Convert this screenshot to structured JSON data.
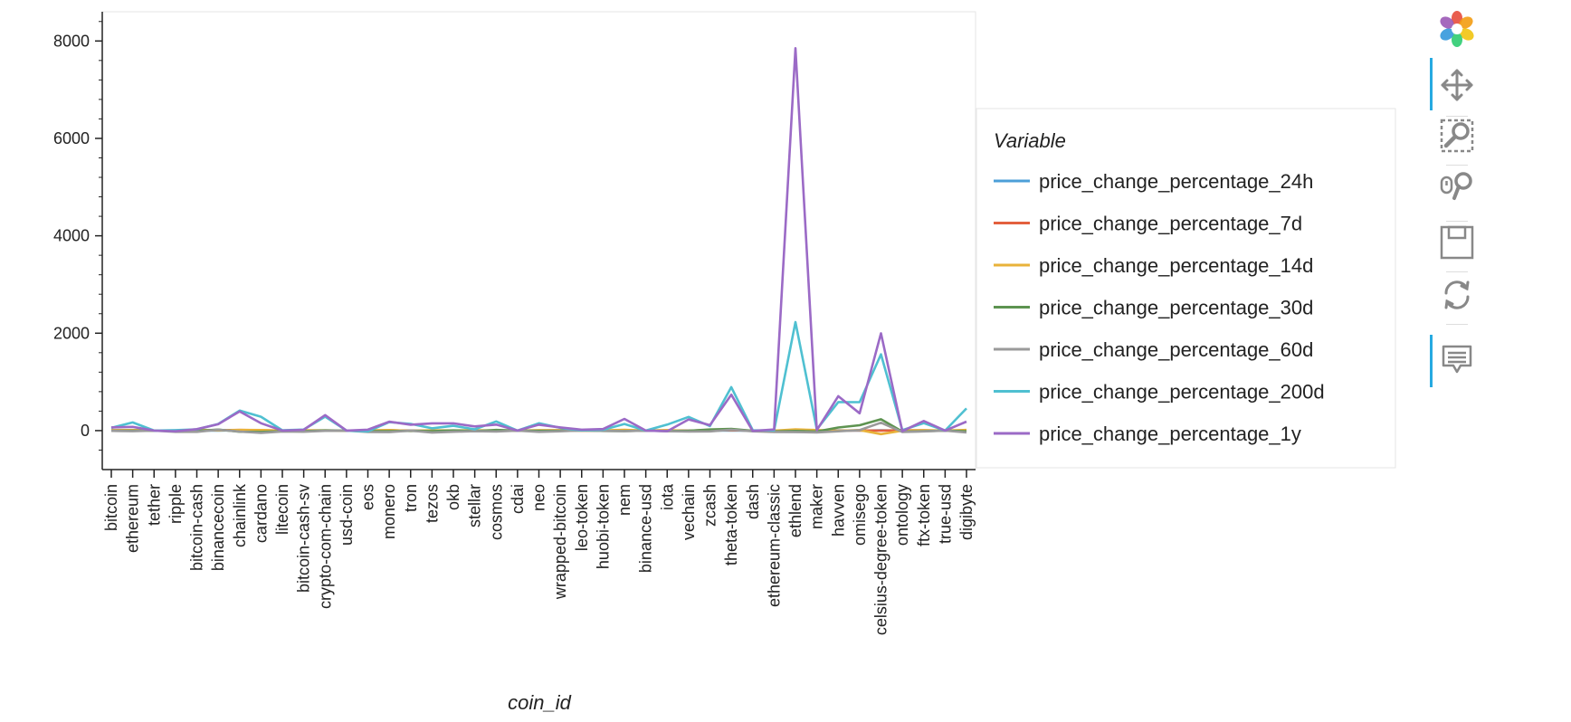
{
  "chart_data": {
    "type": "line",
    "xlabel": "coin_id",
    "ylabel": "",
    "ylim": [
      -800,
      8600
    ],
    "yticks": [
      0,
      2000,
      4000,
      6000,
      8000
    ],
    "legend_title": "Variable",
    "legend_position": "right",
    "grid": false,
    "categories": [
      "bitcoin",
      "ethereum",
      "tether",
      "ripple",
      "bitcoin-cash",
      "binancecoin",
      "chainlink",
      "cardano",
      "litecoin",
      "bitcoin-cash-sv",
      "crypto-com-chain",
      "usd-coin",
      "eos",
      "monero",
      "tron",
      "tezos",
      "okb",
      "stellar",
      "cosmos",
      "cdai",
      "neo",
      "wrapped-bitcoin",
      "leo-token",
      "huobi-token",
      "nem",
      "binance-usd",
      "iota",
      "vechain",
      "zcash",
      "theta-token",
      "dash",
      "ethereum-classic",
      "ethlend",
      "maker",
      "havven",
      "omisego",
      "celsius-degree-token",
      "ontology",
      "ftx-token",
      "true-usd",
      "digibyte"
    ],
    "series": [
      {
        "name": "price_change_percentage_24h",
        "color": "#4c9fd8",
        "values": [
          1,
          2,
          0,
          -1,
          2,
          -1,
          8,
          1,
          1,
          0,
          3,
          0,
          1,
          3,
          1,
          1,
          3,
          -1,
          -1,
          0,
          3,
          1,
          0,
          1,
          2,
          0,
          2,
          -1,
          2,
          -1,
          0,
          1,
          2,
          1,
          4,
          -1,
          6,
          0,
          -1,
          0,
          -1
        ]
      },
      {
        "name": "price_change_percentage_7d",
        "color": "#e3603e",
        "values": [
          7,
          10,
          0,
          -4,
          14,
          8,
          13,
          10,
          -1,
          4,
          2,
          0,
          2,
          8,
          -2,
          -4,
          3,
          4,
          -2,
          0,
          4,
          7,
          0,
          0,
          4,
          0,
          7,
          -3,
          16,
          7,
          -2,
          -2,
          -6,
          3,
          -1,
          2,
          1,
          6,
          7,
          0,
          5
        ]
      },
      {
        "name": "price_change_percentage_14d",
        "color": "#e8b23a",
        "values": [
          7,
          12,
          0,
          0,
          17,
          7,
          13,
          11,
          1,
          5,
          4,
          0,
          2,
          12,
          -6,
          7,
          2,
          8,
          3,
          0,
          6,
          7,
          0,
          4,
          15,
          0,
          10,
          -7,
          11,
          18,
          -1,
          -3,
          25,
          11,
          -4,
          12,
          -72,
          -1,
          9,
          0,
          13
        ]
      },
      {
        "name": "price_change_percentage_30d",
        "color": "#5d9350",
        "values": [
          -3,
          -2,
          0,
          -3,
          -7,
          22,
          -24,
          -27,
          -10,
          -13,
          5,
          0,
          -11,
          -11,
          -4,
          -10,
          5,
          -10,
          14,
          0,
          -4,
          -3,
          12,
          -7,
          -8,
          0,
          -8,
          -3,
          23,
          34,
          -4,
          -16,
          -6,
          -18,
          64,
          111,
          233,
          -20,
          -12,
          0,
          -14
        ]
      },
      {
        "name": "price_change_percentage_60d",
        "color": "#9a9a9a",
        "values": [
          -5,
          -13,
          0,
          -25,
          -25,
          20,
          -19,
          -47,
          -18,
          -24,
          -5,
          0,
          -27,
          -30,
          -2,
          -41,
          -23,
          -13,
          -17,
          0,
          -25,
          -15,
          5,
          -5,
          -12,
          0,
          -13,
          -19,
          -16,
          19,
          -15,
          -28,
          -30,
          -37,
          -15,
          10,
          162,
          -27,
          -16,
          0,
          -38
        ]
      },
      {
        "name": "price_change_percentage_200d",
        "color": "#4fc0d1",
        "values": [
          56,
          168,
          1,
          10,
          27,
          136,
          411,
          284,
          6,
          22,
          287,
          1,
          -16,
          174,
          139,
          48,
          100,
          27,
          189,
          1,
          151,
          56,
          5,
          18,
          137,
          0,
          124,
          281,
          94,
          893,
          8,
          5,
          2228,
          24,
          585,
          584,
          1566,
          10,
          153,
          1,
          456
        ]
      },
      {
        "name": "price_change_percentage_1y",
        "color": "#9b6ac6",
        "values": [
          65,
          77,
          0,
          -15,
          31,
          131,
          394,
          151,
          0,
          18,
          318,
          1,
          20,
          182,
          121,
          149,
          150,
          86,
          124,
          0,
          122,
          65,
          20,
          32,
          241,
          0,
          -13,
          229,
          112,
          738,
          -7,
          23,
          7852,
          10,
          707,
          355,
          1998,
          -12,
          197,
          1,
          185
        ]
      }
    ]
  },
  "toolbar": {
    "tools": [
      {
        "name": "bokeh-logo-icon"
      },
      {
        "name": "pan-tool-icon",
        "active": true
      },
      {
        "name": "box-zoom-tool-icon"
      },
      {
        "name": "wheel-zoom-tool-icon"
      },
      {
        "name": "save-tool-icon"
      },
      {
        "name": "reset-tool-icon"
      },
      {
        "name": "hover-tool-icon",
        "active": true
      }
    ]
  }
}
